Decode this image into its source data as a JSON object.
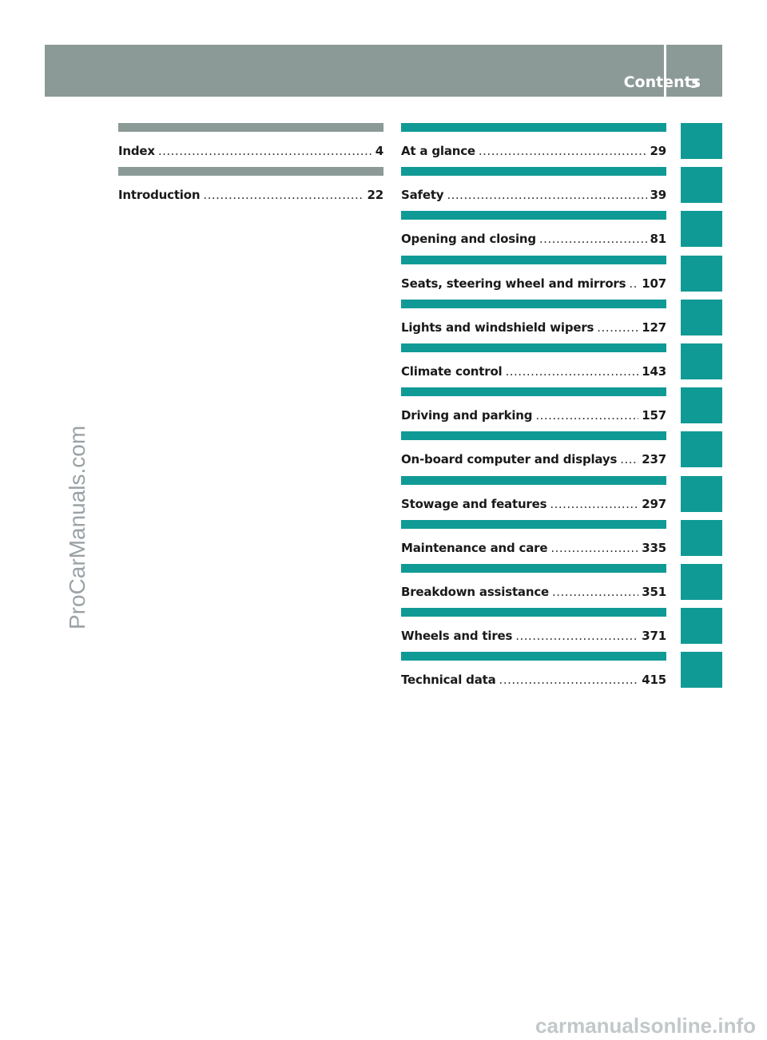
{
  "header": {
    "title": "Contents",
    "page_number": "3",
    "bar_color": "#8c9a97"
  },
  "toc": {
    "accent_color": "#109a96",
    "left_column": [
      {
        "title": "Index",
        "page": "4"
      },
      {
        "title": "Introduction",
        "page": "22"
      }
    ],
    "right_column": [
      {
        "title": "At a glance",
        "page": "29"
      },
      {
        "title": "Safety",
        "page": "39"
      },
      {
        "title": "Opening and closing",
        "page": "81"
      },
      {
        "title": "Seats, steering wheel and mirrors",
        "page": "107"
      },
      {
        "title": "Lights and windshield wipers",
        "page": "127"
      },
      {
        "title": "Climate control",
        "page": "143"
      },
      {
        "title": "Driving and parking",
        "page": "157"
      },
      {
        "title": "On-board computer and displays",
        "page": "237"
      },
      {
        "title": "Stowage and features",
        "page": "297"
      },
      {
        "title": "Maintenance and care",
        "page": "335"
      },
      {
        "title": "Breakdown assistance",
        "page": "351"
      },
      {
        "title": "Wheels and tires",
        "page": "371"
      },
      {
        "title": "Technical data",
        "page": "415"
      }
    ]
  },
  "watermarks": {
    "side": "ProCarManuals.com",
    "bottom": "carmanualsonline.info"
  }
}
